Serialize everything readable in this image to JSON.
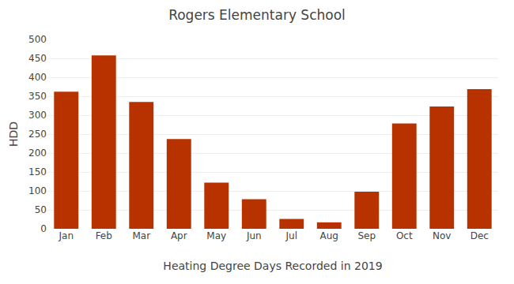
{
  "chart_data": {
    "type": "bar",
    "title": "Rogers Elementary School",
    "xlabel": "Heating Degree Days Recorded in 2019",
    "ylabel": "HDD",
    "categories": [
      "Jan",
      "Feb",
      "Mar",
      "Apr",
      "May",
      "Jun",
      "Jul",
      "Aug",
      "Sep",
      "Oct",
      "Nov",
      "Dec"
    ],
    "values": [
      362,
      458,
      335,
      237,
      122,
      78,
      26,
      17,
      98,
      278,
      323,
      369
    ],
    "color": "#b83200",
    "ylim": [
      0,
      500
    ],
    "yticks": [
      0,
      50,
      100,
      150,
      200,
      250,
      300,
      350,
      400,
      450,
      500
    ],
    "grid": true
  }
}
